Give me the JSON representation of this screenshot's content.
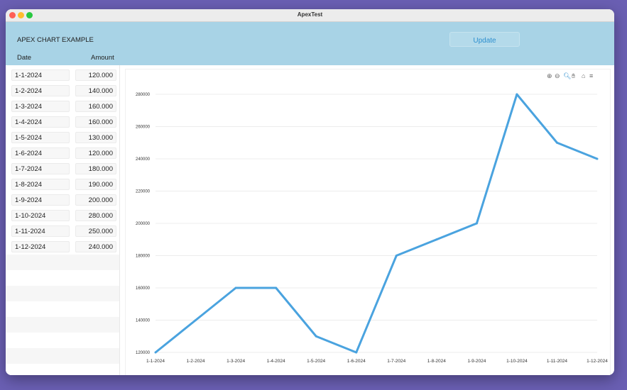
{
  "window": {
    "title": "ApexTest"
  },
  "header": {
    "app_title": "APEX CHART EXAMPLE",
    "update_label": "Update",
    "col_date": "Date",
    "col_amount": "Amount"
  },
  "table": {
    "rows": [
      {
        "date": "1-1-2024",
        "amount": "120.000"
      },
      {
        "date": "1-2-2024",
        "amount": "140.000"
      },
      {
        "date": "1-3-2024",
        "amount": "160.000"
      },
      {
        "date": "1-4-2024",
        "amount": "160.000"
      },
      {
        "date": "1-5-2024",
        "amount": "130.000"
      },
      {
        "date": "1-6-2024",
        "amount": "120.000"
      },
      {
        "date": "1-7-2024",
        "amount": "180.000"
      },
      {
        "date": "1-8-2024",
        "amount": "190.000"
      },
      {
        "date": "1-9-2024",
        "amount": "200.000"
      },
      {
        "date": "1-10-2024",
        "amount": "280.000"
      },
      {
        "date": "1-11-2024",
        "amount": "250.000"
      },
      {
        "date": "1-12-2024",
        "amount": "240.000"
      }
    ]
  },
  "toolbar": {
    "icons": [
      "zoom-in-icon",
      "zoom-out-icon",
      "magnifier-icon",
      "pan-hand-icon",
      "home-icon",
      "menu-icon"
    ]
  },
  "colors": {
    "line": "#4aa3df",
    "header": "#a8d3e6"
  },
  "chart_data": {
    "type": "line",
    "title": "",
    "xlabel": "",
    "ylabel": "",
    "categories": [
      "1-1-2024",
      "1-2-2024",
      "1-3-2024",
      "1-4-2024",
      "1-5-2024",
      "1-6-2024",
      "1-7-2024",
      "1-8-2024",
      "1-9-2024",
      "1-10-2024",
      "1-11-2024",
      "1-12-2024"
    ],
    "series": [
      {
        "values": [
          120000,
          140000,
          160000,
          160000,
          130000,
          120000,
          180000,
          190000,
          200000,
          280000,
          250000,
          240000
        ]
      }
    ],
    "yticks": [
      120000,
      140000,
      160000,
      180000,
      200000,
      220000,
      240000,
      260000,
      280000
    ],
    "ylim": [
      120000,
      280000
    ],
    "grid": true,
    "legend": "none"
  }
}
